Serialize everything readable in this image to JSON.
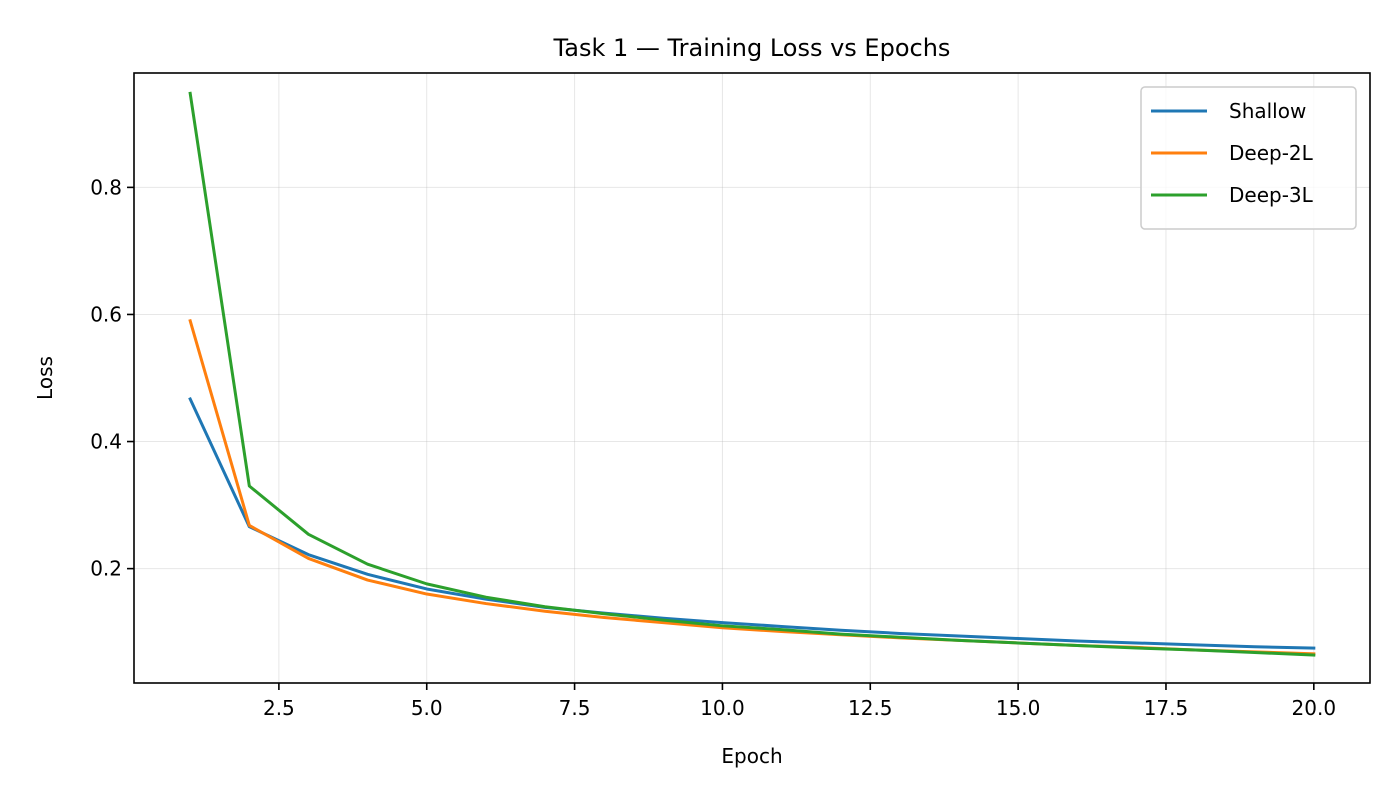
{
  "chart_data": {
    "type": "line",
    "title": "Task 1 — Training Loss vs Epochs",
    "xlabel": "Epoch",
    "ylabel": "Loss",
    "xlim": [
      0.05,
      20.95
    ],
    "ylim": [
      0.02,
      0.98
    ],
    "xticks": [
      2.5,
      5.0,
      7.5,
      10.0,
      12.5,
      15.0,
      17.5,
      20.0
    ],
    "xtick_labels": [
      "2.5",
      "5.0",
      "7.5",
      "10.0",
      "12.5",
      "15.0",
      "17.5",
      "20.0"
    ],
    "yticks": [
      0.2,
      0.4,
      0.6,
      0.8
    ],
    "ytick_labels": [
      "0.2",
      "0.4",
      "0.6",
      "0.8"
    ],
    "grid": true,
    "legend_position": "top-right",
    "x": [
      1,
      2,
      3,
      4,
      5,
      6,
      7,
      8,
      9,
      10,
      11,
      12,
      13,
      14,
      15,
      16,
      17,
      18,
      19,
      20
    ],
    "series": [
      {
        "name": "Shallow",
        "color": "#1f77b4",
        "values": [
          0.467,
          0.266,
          0.222,
          0.191,
          0.168,
          0.152,
          0.139,
          0.13,
          0.122,
          0.115,
          0.109,
          0.103,
          0.098,
          0.094,
          0.09,
          0.086,
          0.083,
          0.08,
          0.077,
          0.075
        ]
      },
      {
        "name": "Deep-2L",
        "color": "#ff7f0e",
        "values": [
          0.59,
          0.268,
          0.216,
          0.182,
          0.16,
          0.145,
          0.133,
          0.123,
          0.115,
          0.107,
          0.101,
          0.096,
          0.091,
          0.087,
          0.083,
          0.079,
          0.076,
          0.072,
          0.069,
          0.066
        ]
      },
      {
        "name": "Deep-3L",
        "color": "#2ca02c",
        "values": [
          0.948,
          0.33,
          0.254,
          0.207,
          0.176,
          0.155,
          0.14,
          0.129,
          0.119,
          0.11,
          0.104,
          0.097,
          0.092,
          0.087,
          0.083,
          0.079,
          0.075,
          0.072,
          0.068,
          0.064
        ]
      }
    ]
  }
}
